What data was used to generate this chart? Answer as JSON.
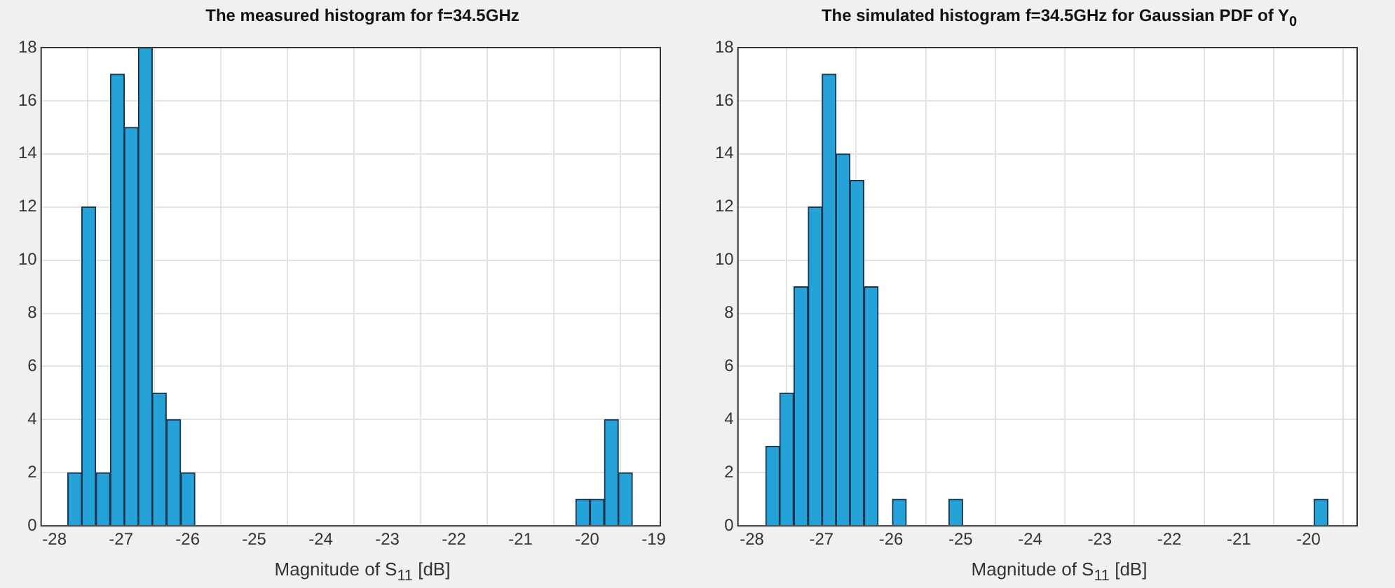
{
  "chart_data": [
    {
      "type": "histogram",
      "title": "The measured histogram for f=34.5GHz",
      "xlabel": "Magnitude of S$_{11}$ [dB]",
      "color": "#25a3d9",
      "bins": [
        -27.8,
        -27.59,
        -27.38,
        -27.16,
        -26.95,
        -26.74,
        -26.53,
        -26.32,
        -26.1,
        -25.89,
        -25.68,
        -25.47,
        -25.26,
        -25.04,
        -24.83,
        -24.62,
        -24.41,
        -24.2,
        -23.98,
        -23.77,
        -23.56,
        -23.35,
        -23.14,
        -22.92,
        -22.71,
        -22.5,
        -22.29,
        -22.08,
        -21.86,
        -21.65,
        -21.44,
        -21.23,
        -21.02,
        -20.8,
        -20.59,
        -20.38,
        -20.17,
        -19.96,
        -19.74,
        -19.53,
        -19.32
      ],
      "values": [
        2,
        12,
        2,
        17,
        15,
        18,
        5,
        4,
        2,
        0,
        0,
        0,
        0,
        0,
        0,
        0,
        0,
        0,
        0,
        0,
        0,
        0,
        0,
        0,
        0,
        0,
        0,
        0,
        0,
        0,
        0,
        0,
        0,
        0,
        0,
        0,
        1,
        1,
        4,
        2
      ],
      "xlim": [
        -28.2,
        -18.9
      ],
      "xticks": [
        -28,
        -27,
        -26,
        -25,
        -24,
        -23,
        -22,
        -21,
        -20,
        -19
      ],
      "ylim": [
        0,
        18
      ],
      "yticks": [
        0,
        2,
        4,
        6,
        8,
        10,
        12,
        14,
        16,
        18
      ],
      "grid": true
    },
    {
      "type": "histogram",
      "title": "The simulated histogram f=34.5GHz for Gaussian PDF of Y$_{0}$",
      "xlabel": "Magnitude of S$_{11}$ [dB]",
      "color": "#25a3d9",
      "bins": [
        -27.8,
        -27.6,
        -27.4,
        -27.19,
        -26.99,
        -26.79,
        -26.59,
        -26.39,
        -26.18,
        -25.98,
        -25.78,
        -25.58,
        -25.38,
        -25.17,
        -24.97,
        -24.77,
        -24.57,
        -24.37,
        -24.16,
        -23.96,
        -23.76,
        -23.56,
        -23.36,
        -23.15,
        -22.95,
        -22.75,
        -22.55,
        -22.35,
        -22.14,
        -21.94,
        -21.74,
        -21.54,
        -21.34,
        -21.13,
        -20.93,
        -20.73,
        -20.53,
        -20.33,
        -20.12,
        -19.92,
        -19.72
      ],
      "values": [
        3,
        5,
        9,
        12,
        17,
        14,
        13,
        9,
        0,
        1,
        0,
        0,
        0,
        1,
        0,
        0,
        0,
        0,
        0,
        0,
        0,
        0,
        0,
        0,
        0,
        0,
        0,
        0,
        0,
        0,
        0,
        0,
        0,
        0,
        0,
        0,
        0,
        0,
        0,
        1
      ],
      "xlim": [
        -28.2,
        -19.3
      ],
      "xticks": [
        -28,
        -27,
        -26,
        -25,
        -24,
        -23,
        -22,
        -21,
        -20
      ],
      "ylim": [
        0,
        18
      ],
      "yticks": [
        0,
        2,
        4,
        6,
        8,
        10,
        12,
        14,
        16,
        18
      ],
      "grid": true
    }
  ]
}
